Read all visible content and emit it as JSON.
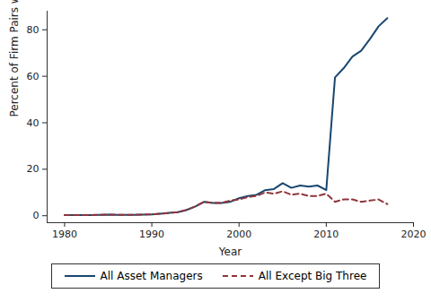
{
  "chart_data": {
    "type": "line",
    "x_label": "Year",
    "y_label": "Percent of Firm Pairs with Overlap",
    "x": [
      1980,
      1981,
      1982,
      1983,
      1984,
      1985,
      1986,
      1987,
      1988,
      1989,
      1990,
      1991,
      1992,
      1993,
      1994,
      1995,
      1996,
      1997,
      1998,
      1999,
      2000,
      2001,
      2002,
      2003,
      2004,
      2005,
      2006,
      2007,
      2008,
      2009,
      2010,
      2011,
      2012,
      2013,
      2014,
      2015,
      2016,
      2017
    ],
    "series": [
      {
        "name": "All Asset Managers",
        "color": "#1a476f",
        "line_style": "solid",
        "values": [
          0.3,
          0.3,
          0.3,
          0.3,
          0.4,
          0.5,
          0.4,
          0.4,
          0.4,
          0.5,
          0.6,
          0.9,
          1.2,
          1.5,
          2.5,
          4,
          6,
          5.5,
          5.5,
          6,
          7.5,
          8.5,
          9,
          11,
          11.5,
          14,
          12,
          13,
          12.5,
          13,
          11,
          59.5,
          63.5,
          68.5,
          71,
          76,
          81.5,
          85
        ]
      },
      {
        "name": "All Except Big Three",
        "color": "#90353b",
        "line_style": "dashed",
        "values": [
          0.3,
          0.3,
          0.3,
          0.3,
          0.4,
          0.5,
          0.4,
          0.4,
          0.4,
          0.5,
          0.6,
          0.9,
          1.2,
          1.5,
          2.5,
          4,
          6,
          5.5,
          5.5,
          6.5,
          7,
          8,
          8.5,
          10,
          9.5,
          10.5,
          9,
          9.5,
          8.5,
          8.5,
          9.5,
          6,
          7,
          7,
          6,
          6.5,
          7,
          5
        ]
      }
    ],
    "xlim": [
      1978,
      2020
    ],
    "xticks": [
      1980,
      1990,
      2000,
      2010,
      2020
    ],
    "ylim": [
      -3,
      88
    ],
    "yticks": [
      0,
      20,
      40,
      60,
      80
    ],
    "grid": false,
    "legend": "bottom"
  }
}
